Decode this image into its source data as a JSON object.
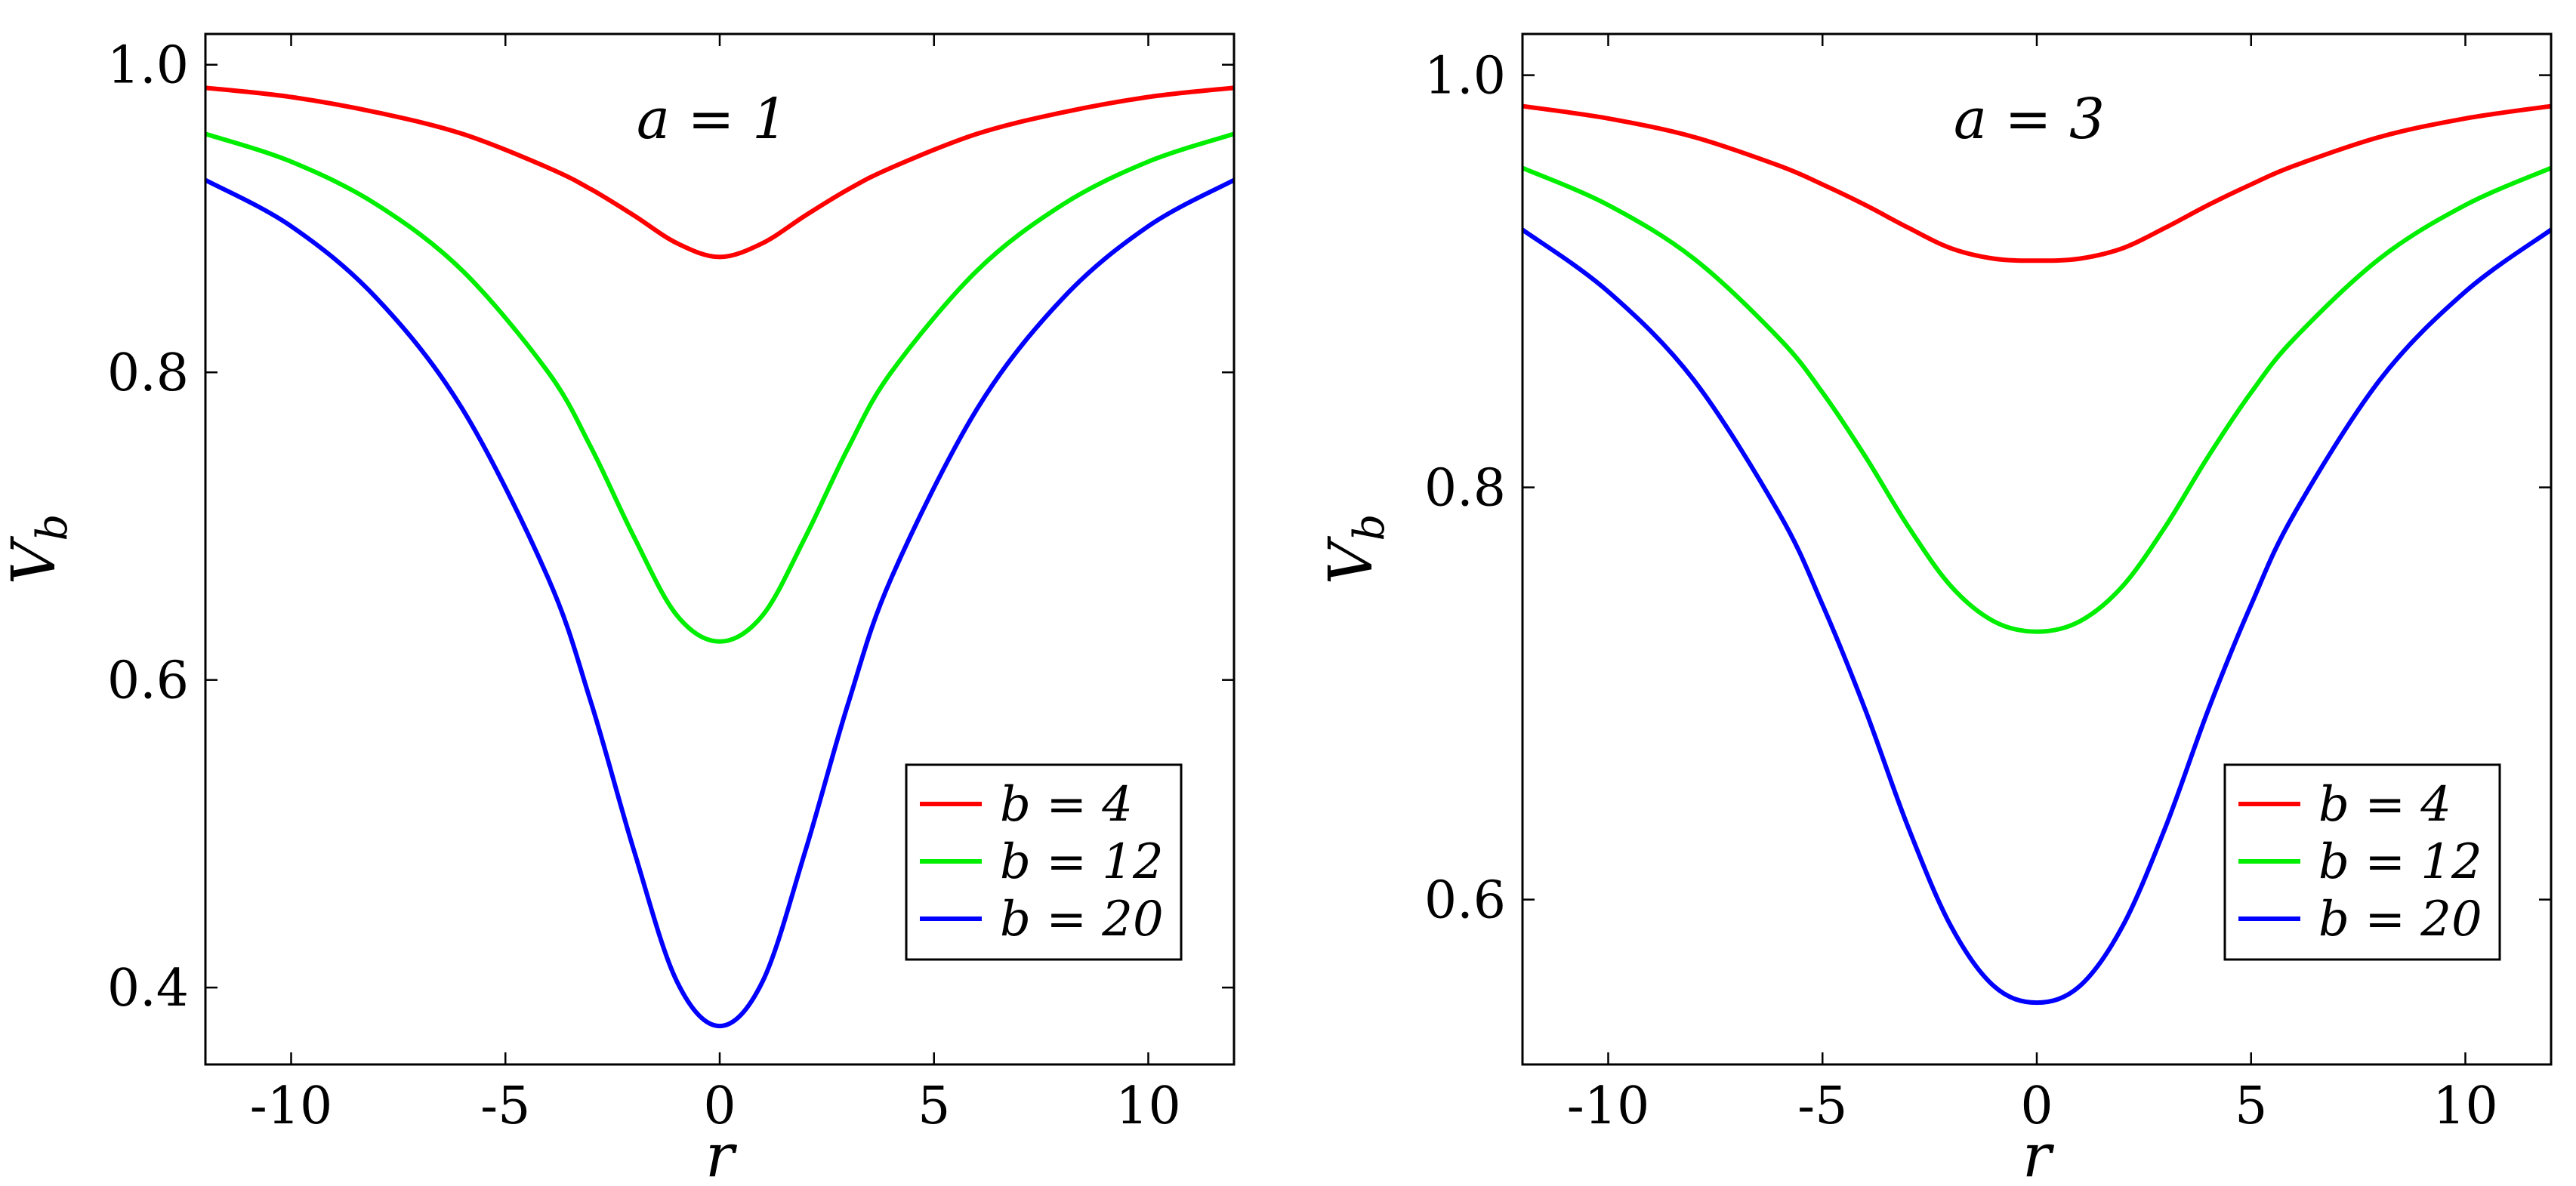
{
  "chart_data": [
    {
      "type": "line",
      "annotation": "a = 1",
      "xlabel": "r",
      "ylabel": "V",
      "ylabel_sub": "b",
      "xlim": [
        -12,
        12
      ],
      "ylim": [
        0.35,
        1.02
      ],
      "xticks": [
        -10,
        -5,
        0,
        5,
        10
      ],
      "xtick_labels": [
        "-10",
        "-5",
        "0",
        "5",
        "10"
      ],
      "yticks": [
        0.4,
        0.6,
        0.8,
        1.0
      ],
      "ytick_labels": [
        "0.4",
        "0.6",
        "0.8",
        "1.0"
      ],
      "grid": false,
      "legend_position": "lower-right",
      "x": [
        -12,
        -10,
        -8,
        -6,
        -4,
        -3,
        -2,
        -1,
        0,
        1,
        2,
        3,
        4,
        6,
        8,
        10,
        12
      ],
      "series": [
        {
          "name": "b = 4",
          "color": "#ff0000",
          "values": [
            0.985,
            0.979,
            0.969,
            0.955,
            0.933,
            0.919,
            0.902,
            0.884,
            0.875,
            0.884,
            0.902,
            0.919,
            0.933,
            0.955,
            0.969,
            0.979,
            0.985
          ]
        },
        {
          "name": "b = 12",
          "color": "#00ee00",
          "values": [
            0.955,
            0.937,
            0.909,
            0.866,
            0.8,
            0.751,
            0.693,
            0.642,
            0.625,
            0.642,
            0.693,
            0.751,
            0.8,
            0.866,
            0.909,
            0.937,
            0.955
          ]
        },
        {
          "name": "b = 20",
          "color": "#0000ff",
          "values": [
            0.925,
            0.895,
            0.848,
            0.776,
            0.666,
            0.585,
            0.489,
            0.404,
            0.375,
            0.404,
            0.489,
            0.585,
            0.666,
            0.776,
            0.848,
            0.895,
            0.925
          ]
        }
      ]
    },
    {
      "type": "line",
      "annotation": "a = 3",
      "xlabel": "r",
      "ylabel": "V",
      "ylabel_sub": "b",
      "xlim": [
        -12,
        12
      ],
      "ylim": [
        0.52,
        1.02
      ],
      "xticks": [
        -10,
        -5,
        0,
        5,
        10
      ],
      "xtick_labels": [
        "-10",
        "-5",
        "0",
        "5",
        "10"
      ],
      "yticks": [
        0.6,
        0.8,
        1.0
      ],
      "ytick_labels": [
        "0.6",
        "0.8",
        "1.0"
      ],
      "grid": false,
      "legend_position": "lower-right",
      "x": [
        -12,
        -10,
        -8,
        -6,
        -5,
        -4,
        -3,
        -2,
        -1,
        0,
        1,
        2,
        3,
        4,
        5,
        6,
        8,
        10,
        12
      ],
      "series": [
        {
          "name": "b = 4",
          "color": "#ff0000",
          "values": [
            0.985,
            0.979,
            0.97,
            0.956,
            0.947,
            0.937,
            0.926,
            0.916,
            0.911,
            0.91,
            0.911,
            0.916,
            0.926,
            0.937,
            0.947,
            0.956,
            0.97,
            0.979,
            0.985
          ]
        },
        {
          "name": "b = 12",
          "color": "#00ee00",
          "values": [
            0.955,
            0.937,
            0.911,
            0.872,
            0.846,
            0.815,
            0.781,
            0.752,
            0.735,
            0.73,
            0.735,
            0.752,
            0.781,
            0.815,
            0.846,
            0.872,
            0.911,
            0.937,
            0.955
          ]
        },
        {
          "name": "b = 20",
          "color": "#0000ff",
          "values": [
            0.925,
            0.895,
            0.852,
            0.787,
            0.743,
            0.692,
            0.635,
            0.587,
            0.558,
            0.55,
            0.558,
            0.587,
            0.635,
            0.692,
            0.743,
            0.787,
            0.852,
            0.895,
            0.925
          ]
        }
      ]
    }
  ]
}
